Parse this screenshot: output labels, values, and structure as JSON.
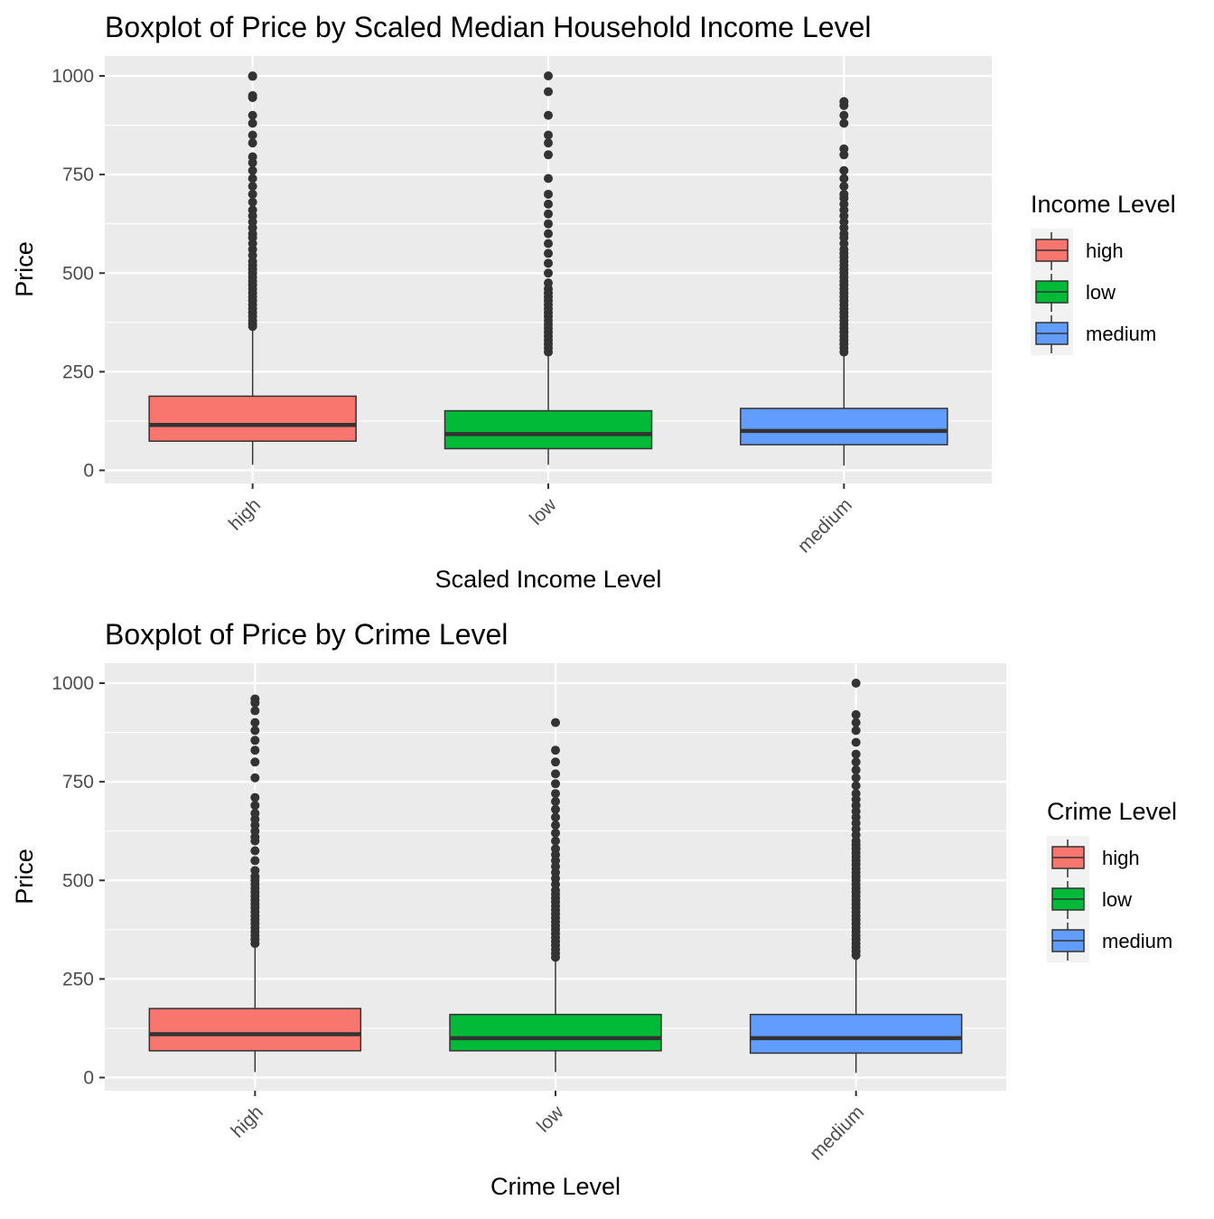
{
  "chart_data": [
    {
      "type": "box",
      "title": "Boxplot of Price by Scaled Median Household Income Level",
      "xlabel": "Scaled Income Level",
      "ylabel": "Price",
      "ylim": [
        -35,
        1030
      ],
      "yticks": [
        0,
        250,
        500,
        750,
        1000
      ],
      "grid": true,
      "legend": {
        "title": "Income Level",
        "position": "right"
      },
      "categories": [
        "high",
        "low",
        "medium"
      ],
      "colors": [
        "#F8766D",
        "#00BA38",
        "#619CFF"
      ],
      "boxes": [
        {
          "category": "high",
          "whisker_low": 14,
          "q1": 74,
          "median": 115,
          "q3": 188,
          "whisker_high": 358,
          "outliers": [
            365,
            372,
            380,
            390,
            400,
            410,
            420,
            430,
            440,
            450,
            460,
            470,
            480,
            490,
            500,
            510,
            520,
            530,
            545,
            560,
            575,
            590,
            600,
            615,
            630,
            645,
            660,
            680,
            700,
            720,
            740,
            760,
            780,
            795,
            830,
            850,
            880,
            900,
            945,
            950,
            999,
            1000
          ]
        },
        {
          "category": "low",
          "whisker_low": 14,
          "q1": 55,
          "median": 92,
          "q3": 151,
          "whisker_high": 297,
          "outliers": [
            300,
            310,
            320,
            330,
            340,
            350,
            360,
            370,
            380,
            390,
            400,
            410,
            420,
            430,
            440,
            450,
            460,
            475,
            500,
            525,
            550,
            575,
            600,
            625,
            650,
            675,
            700,
            740,
            800,
            830,
            850,
            900,
            960,
            1000
          ]
        },
        {
          "category": "medium",
          "whisker_low": 12,
          "q1": 65,
          "median": 100,
          "q3": 157,
          "whisker_high": 297,
          "outliers": [
            300,
            310,
            320,
            330,
            340,
            350,
            360,
            370,
            380,
            390,
            400,
            410,
            420,
            430,
            440,
            450,
            460,
            470,
            480,
            490,
            500,
            510,
            520,
            530,
            540,
            550,
            560,
            575,
            590,
            600,
            615,
            630,
            645,
            660,
            675,
            690,
            700,
            720,
            740,
            760,
            800,
            815,
            880,
            900,
            925,
            935
          ]
        }
      ]
    },
    {
      "type": "box",
      "title": "Boxplot of Price by Crime Level",
      "xlabel": "Crime Level",
      "ylabel": "Price",
      "ylim": [
        -35,
        1030
      ],
      "yticks": [
        0,
        250,
        500,
        750,
        1000
      ],
      "grid": true,
      "legend": {
        "title": "Crime Level",
        "position": "right"
      },
      "categories": [
        "high",
        "low",
        "medium"
      ],
      "colors": [
        "#F8766D",
        "#00BA38",
        "#619CFF"
      ],
      "boxes": [
        {
          "category": "high",
          "whisker_low": 14,
          "q1": 68,
          "median": 110,
          "q3": 175,
          "whisker_high": 335,
          "outliers": [
            340,
            350,
            360,
            370,
            380,
            390,
            400,
            410,
            420,
            430,
            440,
            450,
            460,
            470,
            480,
            490,
            500,
            510,
            525,
            550,
            575,
            600,
            610,
            625,
            640,
            655,
            670,
            690,
            710,
            760,
            800,
            830,
            855,
            880,
            900,
            930,
            950,
            960
          ]
        },
        {
          "category": "low",
          "whisker_low": 14,
          "q1": 68,
          "median": 100,
          "q3": 160,
          "whisker_high": 300,
          "outliers": [
            305,
            315,
            325,
            335,
            345,
            355,
            365,
            375,
            385,
            395,
            405,
            415,
            425,
            435,
            445,
            455,
            465,
            475,
            490,
            505,
            520,
            535,
            550,
            565,
            580,
            600,
            620,
            640,
            660,
            680,
            700,
            720,
            745,
            770,
            800,
            830,
            900
          ]
        },
        {
          "category": "medium",
          "whisker_low": 12,
          "q1": 62,
          "median": 100,
          "q3": 160,
          "whisker_high": 305,
          "outliers": [
            310,
            320,
            330,
            340,
            350,
            360,
            370,
            380,
            390,
            400,
            410,
            420,
            430,
            440,
            450,
            460,
            470,
            480,
            490,
            500,
            510,
            520,
            530,
            540,
            550,
            560,
            570,
            580,
            590,
            600,
            615,
            630,
            645,
            660,
            675,
            690,
            705,
            720,
            740,
            760,
            780,
            800,
            820,
            850,
            880,
            900,
            920,
            1000
          ]
        }
      ]
    }
  ]
}
